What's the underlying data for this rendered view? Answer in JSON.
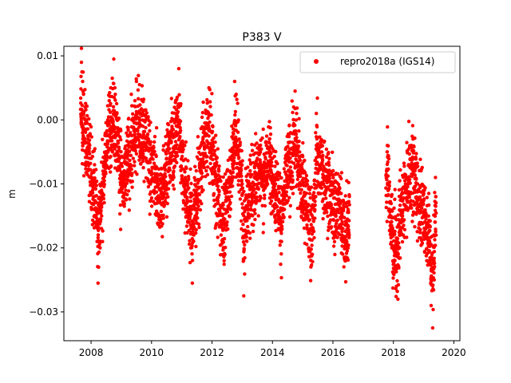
{
  "chart_data": {
    "type": "scatter",
    "title": "P383 V",
    "xlabel": "",
    "ylabel": "m",
    "xlim": [
      2007.1,
      2020.2
    ],
    "ylim": [
      -0.0345,
      0.0115
    ],
    "xticks": [
      2008,
      2010,
      2012,
      2014,
      2016,
      2018,
      2020
    ],
    "yticks": [
      0.01,
      0.0,
      -0.01,
      -0.02,
      -0.03
    ],
    "xtick_labels": [
      "2008",
      "2010",
      "2012",
      "2014",
      "2016",
      "2018",
      "2020"
    ],
    "ytick_labels": [
      "0.01",
      "0.00",
      "−0.01",
      "−0.02",
      "−0.03"
    ],
    "grid": false,
    "legend_position": "top-right",
    "series": [
      {
        "name": "repro2018a (IGS14)",
        "color": "#ff0000",
        "marker": "circle",
        "segments": [
          {
            "start": 2007.65,
            "end": 2016.55
          },
          {
            "start": 2017.75,
            "end": 2019.42
          }
        ],
        "points": [
          [
            2007.68,
            0.009
          ],
          [
            2007.7,
            0.0075
          ],
          [
            2007.72,
            0.006
          ],
          [
            2007.75,
            0.004
          ],
          [
            2007.8,
            0.002
          ],
          [
            2007.85,
            0.0
          ],
          [
            2007.9,
            -0.003
          ],
          [
            2007.95,
            -0.006
          ],
          [
            2008.0,
            -0.009
          ],
          [
            2008.05,
            -0.011
          ],
          [
            2008.1,
            -0.013
          ],
          [
            2008.15,
            -0.016
          ],
          [
            2008.2,
            -0.019
          ],
          [
            2008.23,
            -0.0255
          ],
          [
            2008.25,
            -0.023
          ],
          [
            2008.3,
            -0.02
          ],
          [
            2008.35,
            -0.015
          ],
          [
            2008.4,
            -0.01
          ],
          [
            2008.45,
            -0.006
          ],
          [
            2008.5,
            -0.002
          ],
          [
            2008.55,
            0.0
          ],
          [
            2008.6,
            0.003
          ],
          [
            2008.65,
            0.005
          ],
          [
            2008.7,
            0.0065
          ],
          [
            2008.75,
            0.0095
          ],
          [
            2008.8,
            0.004
          ],
          [
            2008.85,
            0.001
          ],
          [
            2008.9,
            -0.002
          ],
          [
            2008.95,
            -0.006
          ],
          [
            2009.0,
            -0.009
          ],
          [
            2009.05,
            -0.012
          ],
          [
            2009.1,
            -0.0135
          ],
          [
            2009.15,
            -0.01
          ],
          [
            2009.2,
            -0.006
          ],
          [
            2009.25,
            -0.004
          ],
          [
            2009.3,
            -0.002
          ],
          [
            2009.35,
            0.0
          ],
          [
            2009.45,
            0.003
          ],
          [
            2009.5,
            0.006
          ],
          [
            2009.6,
            0.0055
          ],
          [
            2009.7,
            0.003
          ],
          [
            2009.8,
            0.0
          ],
          [
            2009.9,
            -0.003
          ],
          [
            2010.0,
            -0.006
          ],
          [
            2010.1,
            -0.009
          ],
          [
            2010.2,
            -0.012
          ],
          [
            2010.3,
            -0.016
          ],
          [
            2010.4,
            -0.01
          ],
          [
            2010.5,
            -0.006
          ],
          [
            2010.6,
            -0.002
          ],
          [
            2010.7,
            0.0
          ],
          [
            2010.8,
            0.003
          ],
          [
            2010.9,
            0.008
          ],
          [
            2011.0,
            -0.004
          ],
          [
            2011.1,
            -0.01
          ],
          [
            2011.2,
            -0.016
          ],
          [
            2011.3,
            -0.02
          ],
          [
            2011.35,
            -0.0255
          ],
          [
            2011.4,
            -0.018
          ],
          [
            2011.5,
            -0.012
          ],
          [
            2011.6,
            -0.008
          ],
          [
            2011.7,
            -0.003
          ],
          [
            2011.8,
            0.001
          ],
          [
            2011.9,
            0.005
          ],
          [
            2012.0,
            -0.002
          ],
          [
            2012.1,
            -0.008
          ],
          [
            2012.2,
            -0.013
          ],
          [
            2012.3,
            -0.018
          ],
          [
            2012.4,
            -0.022
          ],
          [
            2012.5,
            -0.014
          ],
          [
            2012.6,
            -0.008
          ],
          [
            2012.7,
            -0.002
          ],
          [
            2012.75,
            0.006
          ],
          [
            2012.8,
            0.004
          ],
          [
            2012.9,
            -0.003
          ],
          [
            2013.0,
            -0.01
          ],
          [
            2013.05,
            -0.0275
          ],
          [
            2013.1,
            -0.018
          ],
          [
            2013.2,
            -0.015
          ],
          [
            2013.3,
            -0.012
          ],
          [
            2013.4,
            -0.009
          ],
          [
            2013.5,
            -0.006
          ],
          [
            2013.6,
            -0.005
          ],
          [
            2013.7,
            -0.007
          ],
          [
            2013.8,
            -0.004
          ],
          [
            2013.9,
            -0.003
          ],
          [
            2014.0,
            -0.006
          ],
          [
            2014.1,
            -0.01
          ],
          [
            2014.2,
            -0.015
          ],
          [
            2014.3,
            -0.019
          ],
          [
            2014.4,
            -0.012
          ],
          [
            2014.5,
            -0.006
          ],
          [
            2014.6,
            -0.002
          ],
          [
            2014.7,
            0.002
          ],
          [
            2014.75,
            0.0045
          ],
          [
            2014.8,
            0.001
          ],
          [
            2014.9,
            -0.005
          ],
          [
            2015.0,
            -0.01
          ],
          [
            2015.1,
            -0.015
          ],
          [
            2015.2,
            -0.02
          ],
          [
            2015.3,
            -0.021
          ],
          [
            2015.4,
            -0.014
          ],
          [
            2015.45,
            0.001
          ],
          [
            2016.0,
            -0.014
          ],
          [
            2016.1,
            -0.015
          ],
          [
            2016.2,
            -0.013
          ],
          [
            2016.3,
            -0.018
          ],
          [
            2016.4,
            -0.022
          ],
          [
            2016.5,
            -0.02
          ],
          [
            2017.8,
            -0.004
          ],
          [
            2017.85,
            -0.01
          ],
          [
            2017.9,
            -0.016
          ],
          [
            2017.95,
            -0.02
          ],
          [
            2018.0,
            -0.024
          ],
          [
            2018.05,
            -0.022
          ],
          [
            2018.1,
            -0.026
          ],
          [
            2018.15,
            -0.028
          ],
          [
            2018.2,
            -0.02
          ],
          [
            2018.3,
            -0.015
          ],
          [
            2018.4,
            -0.01
          ],
          [
            2018.5,
            -0.007
          ],
          [
            2018.6,
            -0.004
          ],
          [
            2018.65,
            -0.003
          ],
          [
            2018.7,
            -0.006
          ],
          [
            2018.8,
            -0.01
          ],
          [
            2018.9,
            -0.013
          ],
          [
            2019.0,
            -0.015
          ],
          [
            2019.1,
            -0.018
          ],
          [
            2019.2,
            -0.022
          ],
          [
            2019.25,
            -0.029
          ],
          [
            2019.3,
            -0.0325
          ],
          [
            2019.35,
            -0.025
          ],
          [
            2019.4,
            -0.012
          ]
        ]
      }
    ]
  }
}
